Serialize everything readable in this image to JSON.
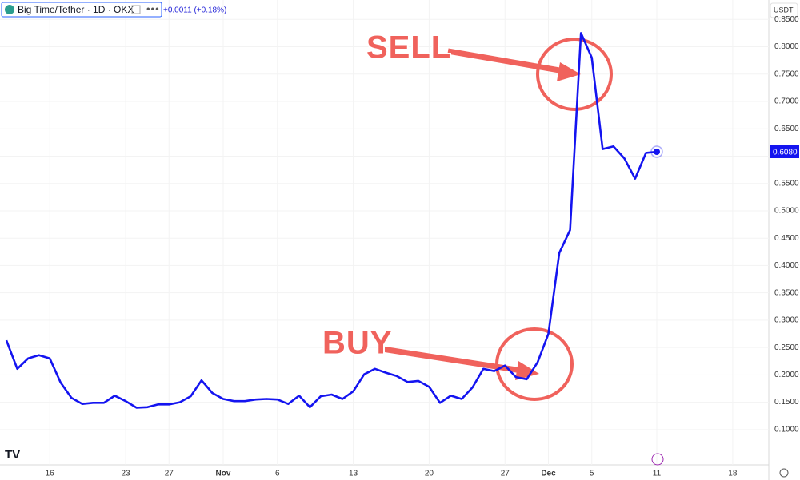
{
  "chart_data": {
    "type": "line",
    "title": "Big Time/Tether · 1D · OKX",
    "change": "+0.0011 (+0.18%)",
    "currency": "USDT",
    "annotations": [
      "SELL",
      "BUY"
    ],
    "categories": [
      null,
      null,
      null,
      null,
      "16",
      null,
      null,
      null,
      null,
      null,
      null,
      "23",
      null,
      null,
      null,
      "27",
      null,
      null,
      null,
      null,
      "Nov",
      null,
      null,
      null,
      null,
      "6",
      null,
      null,
      null,
      null,
      null,
      null,
      "13",
      null,
      null,
      null,
      null,
      null,
      null,
      "20",
      null,
      null,
      null,
      null,
      null,
      null,
      "27",
      null,
      null,
      null,
      "Dec",
      null,
      null,
      null,
      "5",
      null,
      null,
      null,
      null,
      null,
      "11",
      null,
      null,
      null,
      null,
      null,
      null,
      "18"
    ],
    "series": [
      {
        "name": "Big Time/Tether",
        "color": "#1414f0",
        "values": [
          0.263,
          0.211,
          0.23,
          0.236,
          0.23,
          0.186,
          0.158,
          0.147,
          0.149,
          0.149,
          0.162,
          0.152,
          0.14,
          0.141,
          0.146,
          0.146,
          0.15,
          0.161,
          0.19,
          0.167,
          0.156,
          0.152,
          0.152,
          0.155,
          0.156,
          0.155,
          0.147,
          0.162,
          0.141,
          0.161,
          0.164,
          0.156,
          0.17,
          0.201,
          0.211,
          0.204,
          0.198,
          0.187,
          0.189,
          0.178,
          0.149,
          0.162,
          0.156,
          0.177,
          0.211,
          0.207,
          0.217,
          0.196,
          0.192,
          0.223,
          0.275,
          0.423,
          0.465,
          0.825,
          0.78,
          0.613,
          0.618,
          0.596,
          0.559,
          0.606,
          0.608,
          null,
          null,
          null,
          null,
          null,
          null,
          null
        ]
      }
    ],
    "last_price": {
      "value": 0.608,
      "label": "0.6080"
    },
    "ylim": [
      0.0355,
      0.8855
    ],
    "yticks": [
      {
        "value": 0.1,
        "label": "0.1000"
      },
      {
        "value": 0.15,
        "label": "0.1500"
      },
      {
        "value": 0.2,
        "label": "0.2000"
      },
      {
        "value": 0.25,
        "label": "0.2500"
      },
      {
        "value": 0.3,
        "label": "0.3000"
      },
      {
        "value": 0.35,
        "label": "0.3500"
      },
      {
        "value": 0.4,
        "label": "0.4000"
      },
      {
        "value": 0.45,
        "label": "0.4500"
      },
      {
        "value": 0.5,
        "label": "0.5000"
      },
      {
        "value": 0.55,
        "label": "0.5500"
      },
      {
        "value": 0.6,
        "label": "0.6000"
      },
      {
        "value": 0.65,
        "label": "0.6500"
      },
      {
        "value": 0.7,
        "label": "0.7000"
      },
      {
        "value": 0.75,
        "label": "0.7500"
      },
      {
        "value": 0.8,
        "label": "0.8000"
      },
      {
        "value": 0.85,
        "label": "0.8500"
      }
    ]
  }
}
